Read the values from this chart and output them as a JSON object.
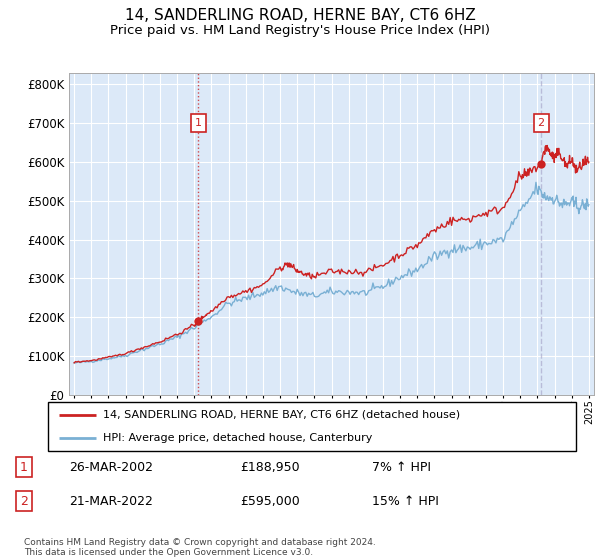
{
  "title": "14, SANDERLING ROAD, HERNE BAY, CT6 6HZ",
  "subtitle": "Price paid vs. HM Land Registry's House Price Index (HPI)",
  "title_fontsize": 11,
  "subtitle_fontsize": 9.5,
  "background_color": "#ffffff",
  "plot_bg_color": "#dce9f8",
  "grid_color": "#ffffff",
  "red_line_color": "#cc2222",
  "blue_line_color": "#7ab0d4",
  "transaction1": {
    "date_num": 2002.23,
    "price": 188950,
    "label": "1"
  },
  "transaction2": {
    "date_num": 2022.22,
    "price": 595000,
    "label": "2"
  },
  "vline1_color": "#cc2222",
  "vline1_style": ":",
  "vline2_color": "#aaaacc",
  "vline2_style": "--",
  "legend_line1": "14, SANDERLING ROAD, HERNE BAY, CT6 6HZ (detached house)",
  "legend_line2": "HPI: Average price, detached house, Canterbury",
  "annotation1_date": "26-MAR-2002",
  "annotation1_price": "£188,950",
  "annotation1_hpi": "7% ↑ HPI",
  "annotation2_date": "21-MAR-2022",
  "annotation2_price": "£595,000",
  "annotation2_hpi": "15% ↑ HPI",
  "footer": "Contains HM Land Registry data © Crown copyright and database right 2024.\nThis data is licensed under the Open Government Licence v3.0.",
  "ylim": [
    0,
    830000
  ],
  "xlim": [
    1994.7,
    2025.3
  ]
}
